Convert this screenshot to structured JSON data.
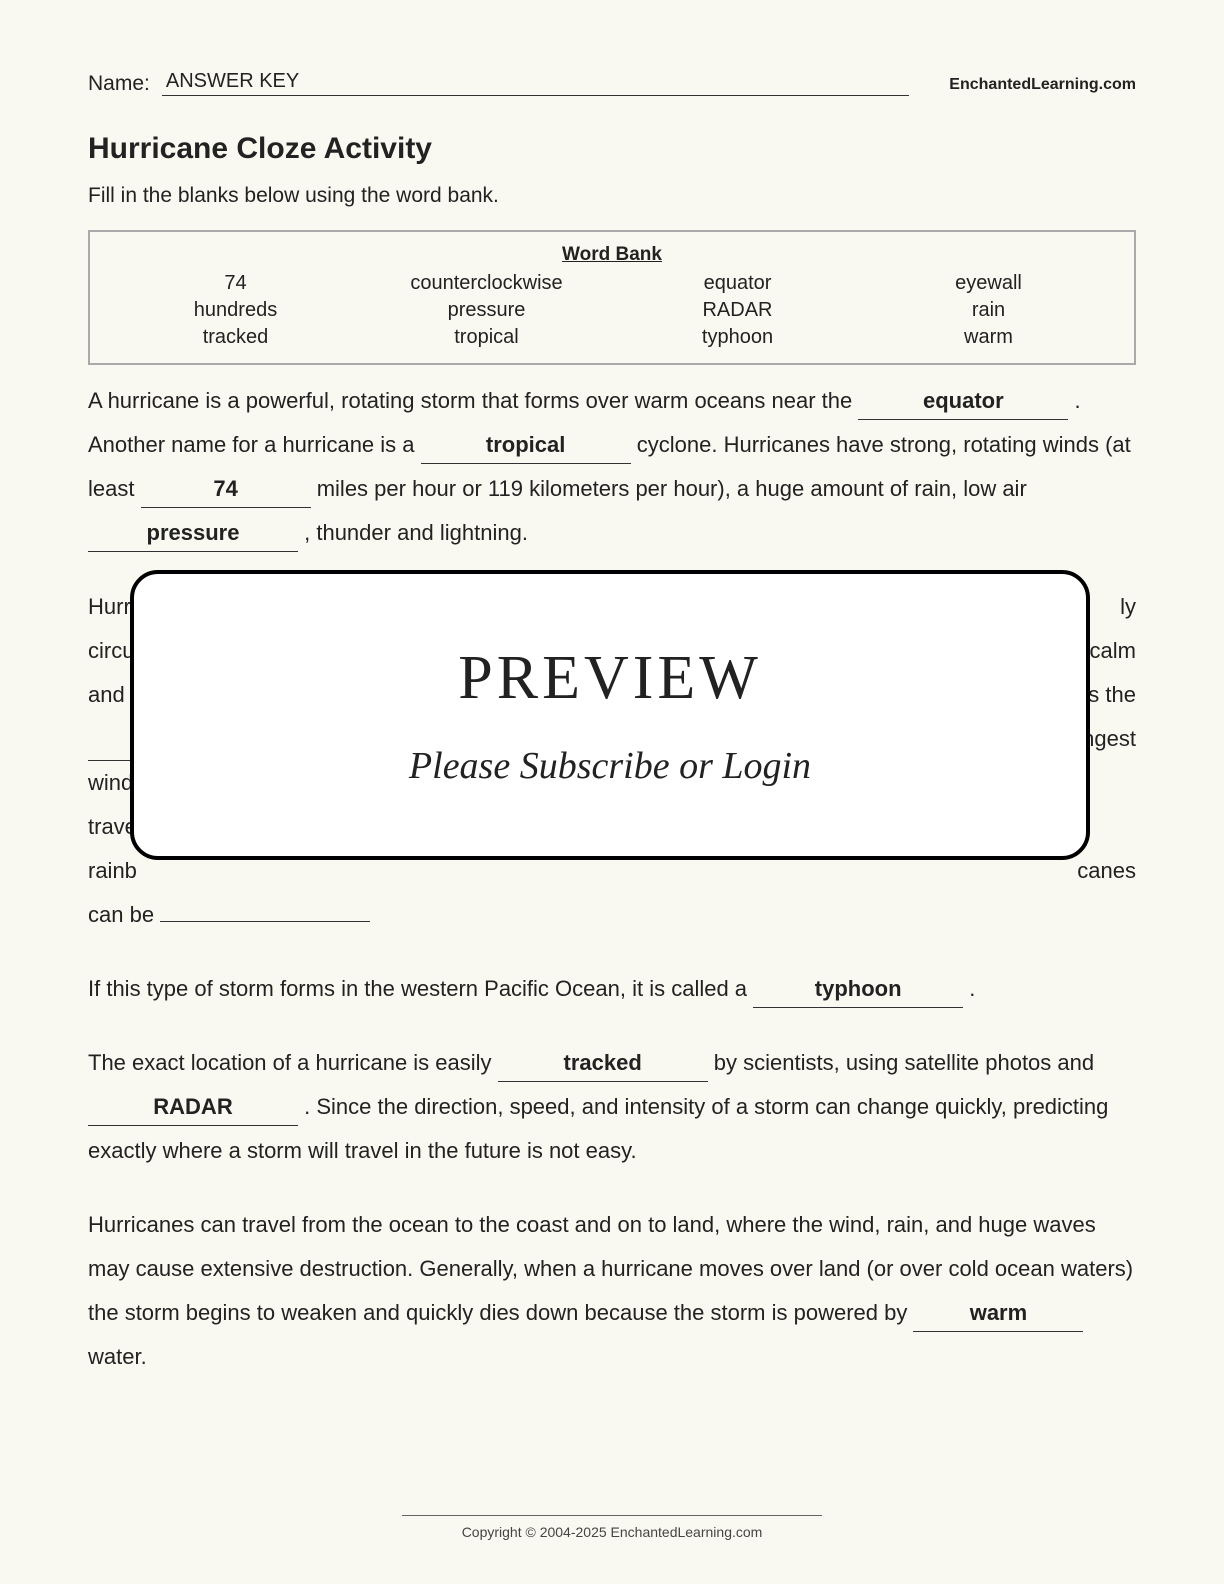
{
  "header": {
    "name_label": "Name:",
    "name_value": "ANSWER KEY",
    "site": "EnchantedLearning.com"
  },
  "title": "Hurricane Cloze Activity",
  "instructions": "Fill in the blanks below using the word bank.",
  "wordbank": {
    "title": "Word Bank",
    "words": [
      "74",
      "counterclockwise",
      "equator",
      "eyewall",
      "hundreds",
      "pressure",
      "RADAR",
      "rain",
      "tracked",
      "tropical",
      "typhoon",
      "warm"
    ]
  },
  "text": {
    "p1_a": "A hurricane is a powerful, rotating storm that forms over warm oceans near the ",
    "p1_blank1": "equator",
    "p1_b": ". Another name for a hurricane is a ",
    "p1_blank2": "tropical",
    "p1_c": " cyclone. Hurricanes have strong, rotating winds (at least ",
    "p1_blank3": "74",
    "p1_d": " miles per hour or 119 kilometers per hour), a huge amount of rain, low air ",
    "p1_blank4": "pressure",
    "p1_e": ", thunder and lightning.",
    "p2_left1": "Hurri",
    "p2_right1": "ly",
    "p2_left2": "circul",
    "p2_right2": "y calm",
    "p2_left3": "and th",
    "p2_right3": " is the",
    "p2_left4": "",
    "p2_right4": "ngest",
    "p2_left5": "winds",
    "p2_left6": "travel",
    "p2_left7": "rainb",
    "p2_right7": "canes",
    "p2_left8": "can be",
    "p3_a": "If this type of storm forms in the western Pacific Ocean, it is called a ",
    "p3_blank1": "typhoon",
    "p3_b": ".",
    "p4_a": "The exact location of a hurricane is easily ",
    "p4_blank1": "tracked",
    "p4_b": " by scientists, using satellite photos and ",
    "p4_blank2": "RADAR",
    "p4_c": ". Since the direction, speed, and intensity of a storm can change quickly, predicting exactly where a storm will travel in the future is not easy.",
    "p5_a": "Hurricanes can travel from the ocean to the coast and on to land, where the wind, rain, and huge waves may cause extensive destruction. Generally, when a hurricane moves over land (or over cold ocean waters) the storm begins to weaken and quickly dies down because the storm is powered by ",
    "p5_blank1": "warm",
    "p5_b": " water."
  },
  "overlay": {
    "title": "PREVIEW",
    "subtitle": "Please Subscribe or Login"
  },
  "footer": "Copyright © 2004-2025 EnchantedLearning.com"
}
